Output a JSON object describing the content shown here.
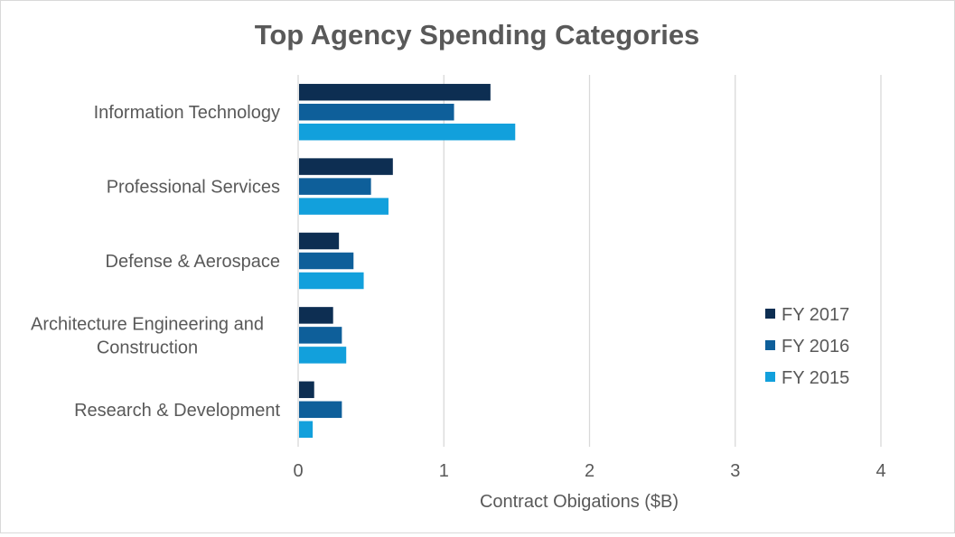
{
  "chart_data": {
    "type": "bar",
    "orientation": "horizontal",
    "title": "Top Agency Spending Categories",
    "xlabel": "Contract Obigations ($B)",
    "ylabel": "",
    "xlim": [
      0,
      4
    ],
    "xticks": [
      "0",
      "1",
      "2",
      "3",
      "4"
    ],
    "grid": true,
    "legend_position": "right",
    "categories": [
      [
        "Information Technology"
      ],
      [
        "Professional Services"
      ],
      [
        "Defense & Aerospace"
      ],
      [
        "Architecture Engineering and",
        "Construction"
      ],
      [
        "Research & Development"
      ]
    ],
    "series": [
      {
        "name": "FY 2017",
        "color": "#0d2e52",
        "values": [
          1.32,
          0.65,
          0.28,
          0.24,
          0.11
        ]
      },
      {
        "name": "FY 2016",
        "color": "#0e5f9a",
        "values": [
          1.07,
          0.5,
          0.38,
          0.3,
          0.3
        ]
      },
      {
        "name": "FY 2015",
        "color": "#12a0dc",
        "values": [
          1.49,
          0.62,
          0.45,
          0.33,
          0.1
        ]
      }
    ]
  }
}
